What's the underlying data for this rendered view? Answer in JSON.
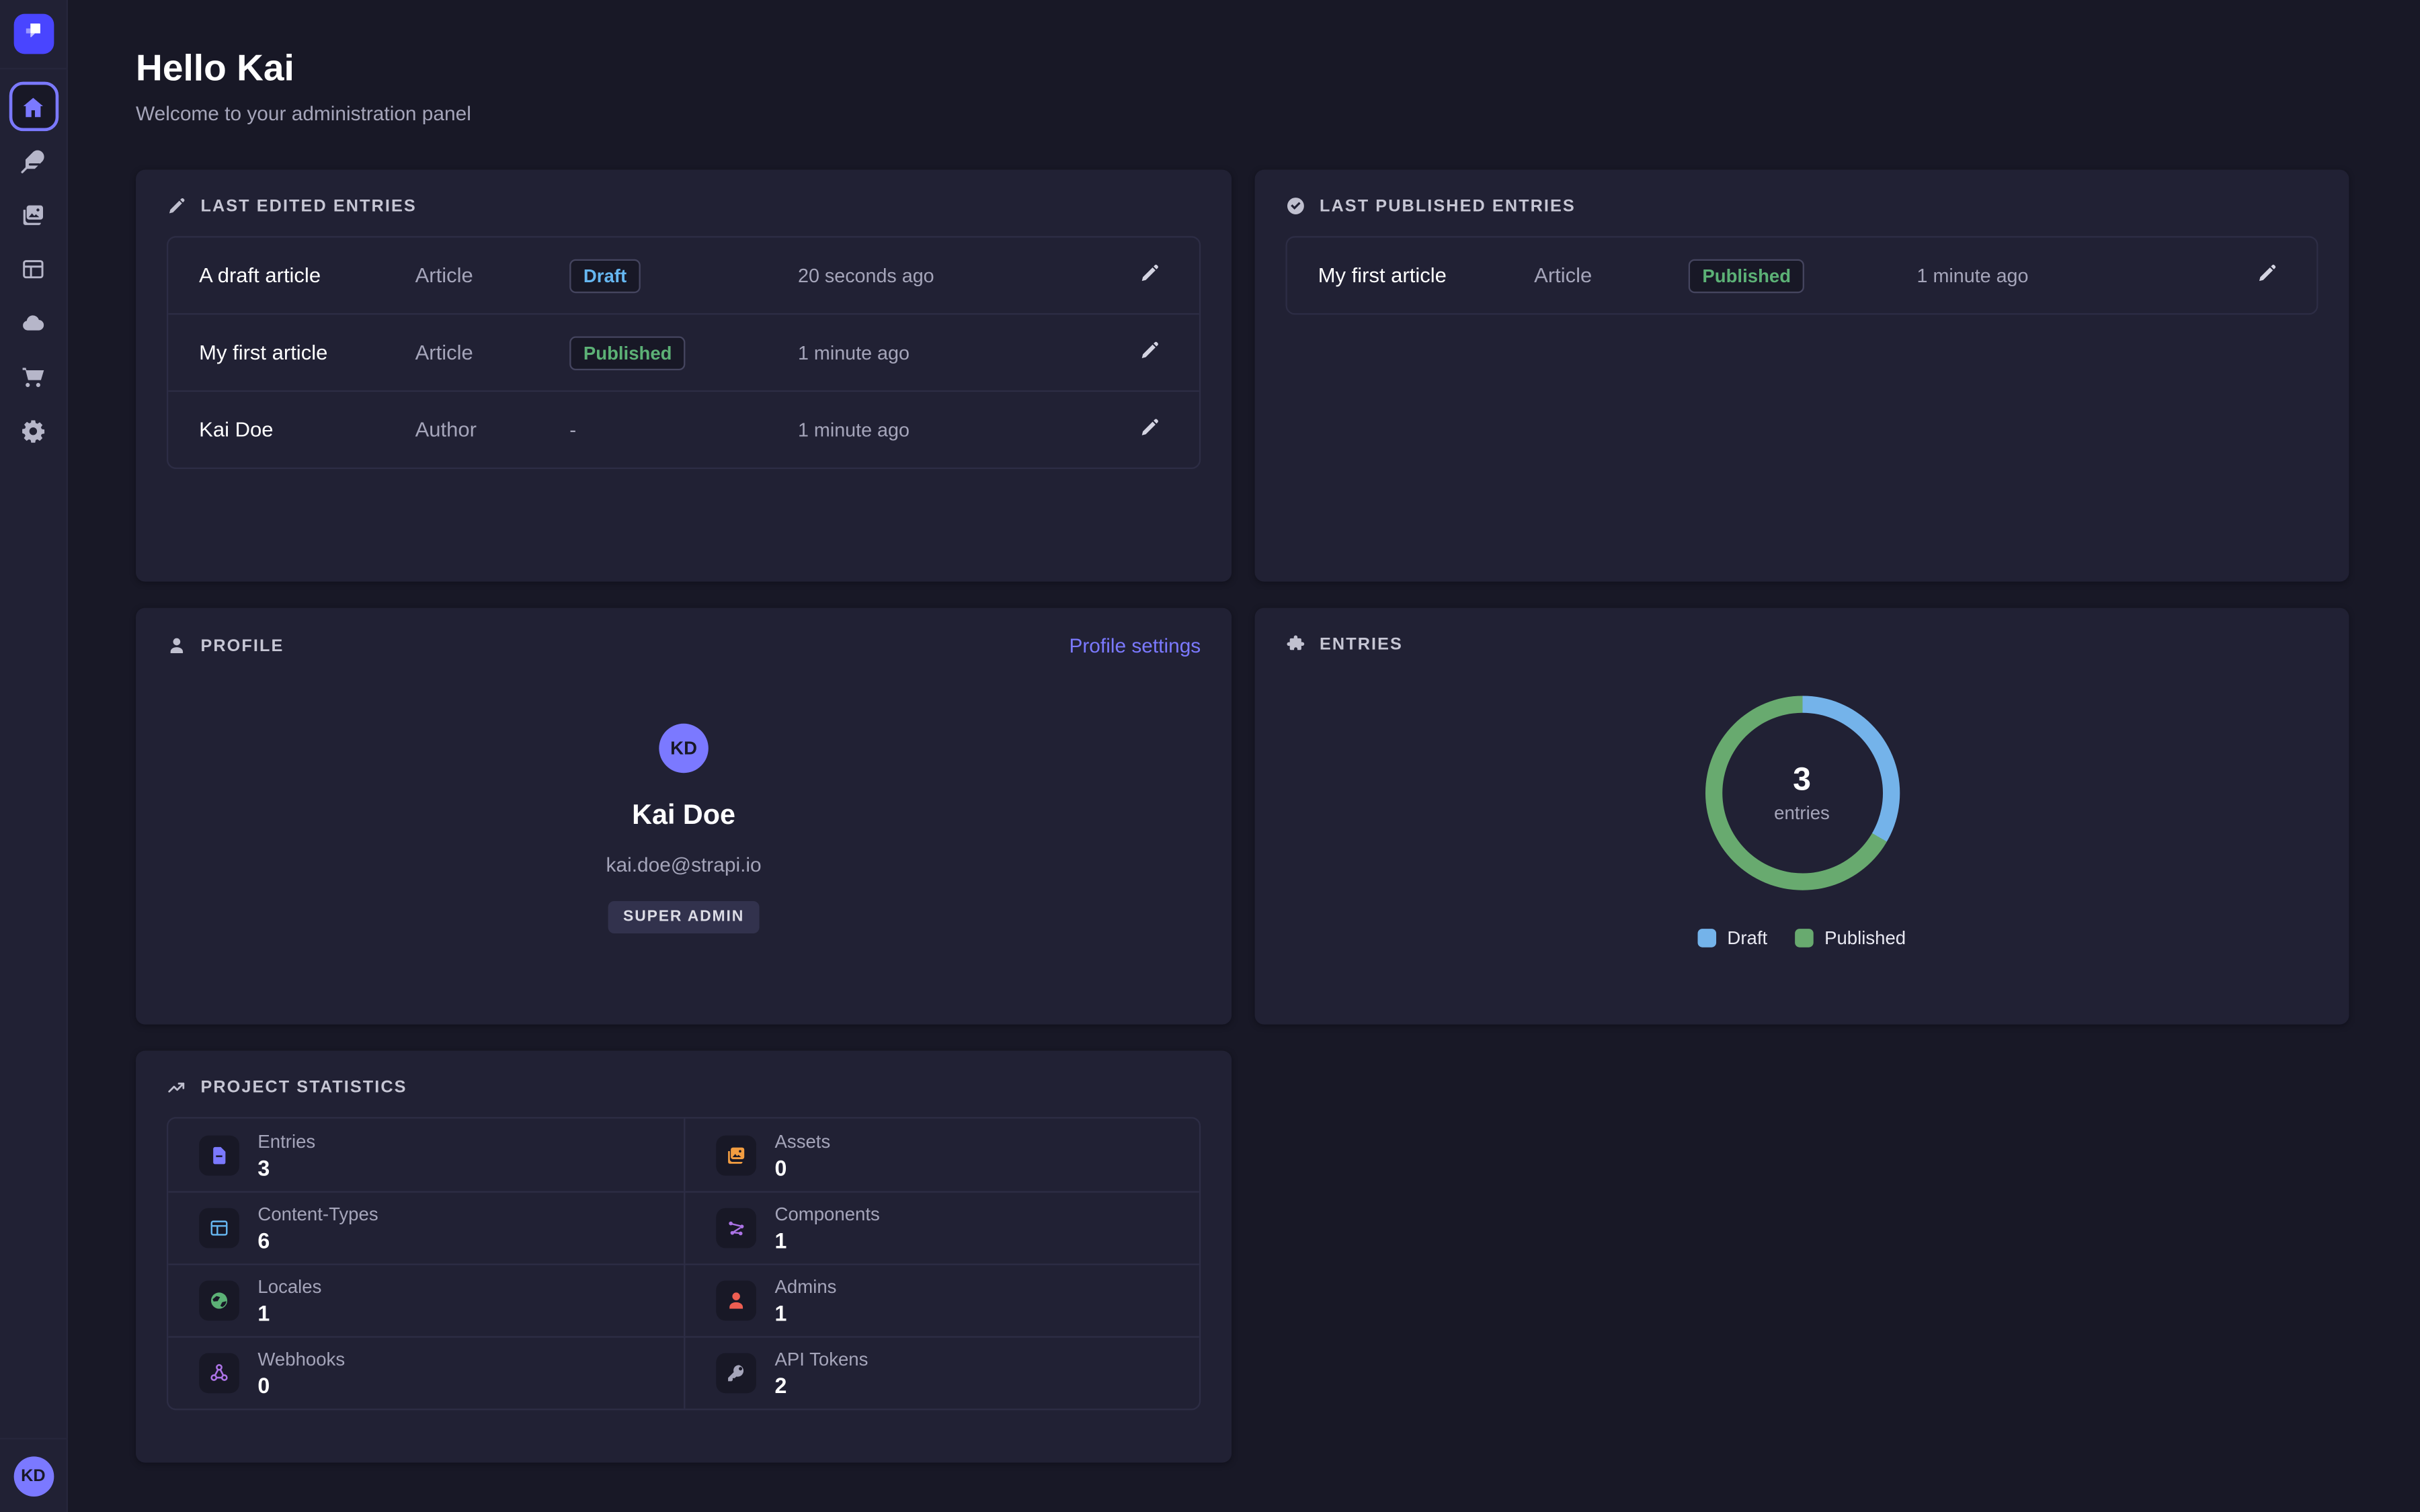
{
  "header": {
    "title": "Hello Kai",
    "subtitle": "Welcome to your administration panel"
  },
  "sidebar": {
    "logo_icon": "strapi-logo",
    "items": [
      {
        "id": "home",
        "icon": "home-icon",
        "active": true
      },
      {
        "id": "content-manager",
        "icon": "feather-icon",
        "active": false
      },
      {
        "id": "media-library",
        "icon": "images-icon",
        "active": false
      },
      {
        "id": "content-type-builder",
        "icon": "layout-icon",
        "active": false
      },
      {
        "id": "deploy",
        "icon": "cloud-icon",
        "active": false
      },
      {
        "id": "marketplace",
        "icon": "cart-icon",
        "active": false
      },
      {
        "id": "settings",
        "icon": "gear-icon",
        "active": false
      }
    ],
    "user_initials": "KD"
  },
  "panels": {
    "last_edited": {
      "title": "LAST EDITED ENTRIES",
      "icon": "pencil-icon",
      "rows": [
        {
          "name": "A draft article",
          "type": "Article",
          "status": "Draft",
          "status_kind": "draft",
          "time": "20 seconds ago"
        },
        {
          "name": "My first article",
          "type": "Article",
          "status": "Published",
          "status_kind": "published",
          "time": "1 minute ago"
        },
        {
          "name": "Kai Doe",
          "type": "Author",
          "status": "-",
          "status_kind": "none",
          "time": "1 minute ago"
        }
      ]
    },
    "last_published": {
      "title": "LAST PUBLISHED ENTRIES",
      "icon": "check-circle-icon",
      "rows": [
        {
          "name": "My first article",
          "type": "Article",
          "status": "Published",
          "status_kind": "published",
          "time": "1 minute ago"
        }
      ]
    },
    "profile": {
      "title": "PROFILE",
      "icon": "person-icon",
      "link_label": "Profile settings",
      "initials": "KD",
      "name": "Kai Doe",
      "email": "kai.doe@strapi.io",
      "role": "SUPER ADMIN",
      "avatar_color": "#7B79FF"
    },
    "entries": {
      "title": "ENTRIES",
      "icon": "puzzle-icon"
    },
    "stats": {
      "title": "PROJECT STATISTICS",
      "icon": "trend-up-icon",
      "items": [
        {
          "label": "Entries",
          "value": "3",
          "icon": "document-icon",
          "color": "#7B79FF"
        },
        {
          "label": "Assets",
          "value": "0",
          "icon": "images-icon",
          "color": "#F29D41"
        },
        {
          "label": "Content-Types",
          "value": "6",
          "icon": "layout-icon",
          "color": "#66B7F1"
        },
        {
          "label": "Components",
          "value": "1",
          "icon": "components-icon",
          "color": "#AC73E6"
        },
        {
          "label": "Locales",
          "value": "1",
          "icon": "globe-icon",
          "color": "#5CB176"
        },
        {
          "label": "Admins",
          "value": "1",
          "icon": "user-icon",
          "color": "#EE5E52"
        },
        {
          "label": "Webhooks",
          "value": "0",
          "icon": "webhook-icon",
          "color": "#AC73E6"
        },
        {
          "label": "API Tokens",
          "value": "2",
          "icon": "key-icon",
          "color": "#A5A5BA"
        }
      ]
    }
  },
  "chart_data": {
    "type": "pie",
    "subtype": "donut",
    "title": "ENTRIES",
    "center_value": "3",
    "center_label": "entries",
    "categories": [
      "Draft",
      "Published"
    ],
    "values": [
      1,
      2
    ],
    "colors": [
      "#74B3EA",
      "#68AA6F"
    ],
    "legend_position": "bottom",
    "start_angle_deg": 0,
    "direction": "clockwise"
  },
  "colors": {
    "page_bg": "#181826",
    "panel_bg": "#212134",
    "accent": "#7B79FF",
    "brand": "#4945FF",
    "draft_text": "#66B7F1",
    "published_text": "#5CB176"
  }
}
